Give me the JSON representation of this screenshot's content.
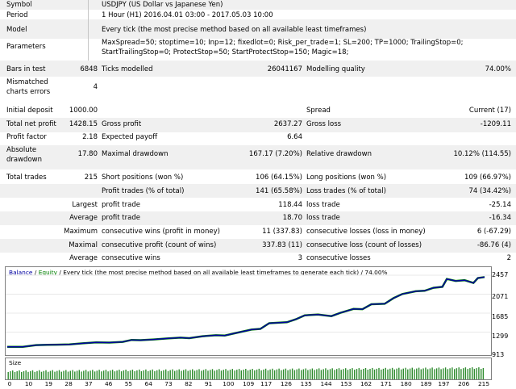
{
  "header": {
    "symbol": {
      "label": "Symbol",
      "value": "USDJPY (US Dollar vs Japanese Yen)"
    },
    "period": {
      "label": "Period",
      "value": "1 Hour (H1) 2016.04.01 03:00 - 2017.05.03 10:00"
    },
    "model": {
      "label": "Model",
      "value": "Every tick (the most precise method based on all available least timeframes)"
    },
    "parameters": {
      "label": "Parameters",
      "line1": "MaxSpread=50; stoptime=10; Inp=12; fixedlot=0; Risk_per_trade=1; SL=200; TP=1000; TrailingStop=0;",
      "line2": "StartTrailingStop=0; ProtectStop=50; StartProtectStop=150; Magic=18;"
    }
  },
  "bars": {
    "label": "Bars in test",
    "value": "6848"
  },
  "ticks": {
    "label": "Ticks modelled",
    "value": "26041167"
  },
  "quality": {
    "label": "Modelling quality",
    "value": "74.00%"
  },
  "mismatched": {
    "label1": "Mismatched",
    "label2": "charts errors",
    "value": "4"
  },
  "deposit": {
    "label": "Initial deposit",
    "value": "1000.00"
  },
  "spread": {
    "label": "Spread",
    "value": "Current (17)"
  },
  "net_profit": {
    "label": "Total net profit",
    "value": "1428.15"
  },
  "gross_profit": {
    "label": "Gross profit",
    "value": "2637.27"
  },
  "gross_loss": {
    "label": "Gross loss",
    "value": "-1209.11"
  },
  "profit_factor": {
    "label": "Profit factor",
    "value": "2.18"
  },
  "expected_payoff": {
    "label": "Expected payoff",
    "value": "6.64"
  },
  "abs_drawdown": {
    "label1": "Absolute",
    "label2": "drawdown",
    "value": "17.80"
  },
  "max_drawdown": {
    "label": "Maximal drawdown",
    "value": "167.17 (7.20%)"
  },
  "rel_drawdown": {
    "label": "Relative drawdown",
    "value": "10.12% (114.55)"
  },
  "total_trades": {
    "label": "Total trades",
    "value": "215"
  },
  "short_positions": {
    "label": "Short positions (won %)",
    "value": "106 (64.15%)"
  },
  "long_positions": {
    "label": "Long positions (won %)",
    "value": "109 (66.97%)"
  },
  "profit_trades": {
    "label": "Profit trades (% of total)",
    "value": "141 (65.58%)"
  },
  "loss_trades": {
    "label": "Loss trades (% of total)",
    "value": "74 (34.42%)"
  },
  "largest": {
    "label": "Largest",
    "profit_label": "profit trade",
    "profit_value": "118.44",
    "loss_label": "loss trade",
    "loss_value": "-25.14"
  },
  "average": {
    "label": "Average",
    "profit_label": "profit trade",
    "profit_value": "18.70",
    "loss_label": "loss trade",
    "loss_value": "-16.34"
  },
  "maximum": {
    "label": "Maximum",
    "wins_label": "consecutive wins (profit in money)",
    "wins_value": "11 (337.83)",
    "losses_label": "consecutive losses (loss in money)",
    "losses_value": "6 (-67.29)"
  },
  "maximal": {
    "label": "Maximal",
    "wins_label": "consecutive profit (count of wins)",
    "wins_value": "337.83 (11)",
    "losses_label": "consecutive loss (count of losses)",
    "losses_value": "-86.76 (4)"
  },
  "avg_consec": {
    "label": "Average",
    "wins_label": "consecutive wins",
    "wins_value": "3",
    "losses_label": "consecutive losses",
    "losses_value": "2"
  },
  "chart_title": {
    "balance": "Balance",
    "sep": " / ",
    "equity": "Equity",
    "rest": " / Every tick (the most precise method based on all available least timeframes to generate each tick) / 74.00%"
  },
  "colors": {
    "balance": "#0000a0",
    "equity": "#008000",
    "volume": "#2e8b2e"
  },
  "chart_data": {
    "type": "line",
    "ylabels": [
      "2457",
      "2071",
      "1685",
      "1299",
      "913"
    ],
    "xlabels": [
      "0",
      "10",
      "19",
      "28",
      "37",
      "46",
      "55",
      "64",
      "73",
      "82",
      "91",
      "100",
      "109",
      "117",
      "126",
      "135",
      "144",
      "153",
      "162",
      "171",
      "180",
      "189",
      "197",
      "206",
      "215"
    ],
    "size_label": "Size",
    "series": [
      {
        "name": "Balance",
        "x": [
          0,
          7,
          13,
          18,
          22,
          28,
          34,
          40,
          46,
          52,
          56,
          60,
          66,
          72,
          78,
          82,
          88,
          94,
          98,
          104,
          110,
          114,
          118,
          122,
          126,
          130,
          134,
          140,
          146,
          150,
          156,
          160,
          164,
          170,
          174,
          178,
          184,
          188,
          192,
          196,
          198,
          202,
          206,
          210,
          212,
          215
        ],
        "y": [
          1000,
          1000,
          1035,
          1040,
          1042,
          1050,
          1070,
          1090,
          1085,
          1100,
          1140,
          1135,
          1150,
          1170,
          1185,
          1175,
          1215,
          1235,
          1230,
          1290,
          1350,
          1365,
          1480,
          1490,
          1500,
          1560,
          1640,
          1655,
          1625,
          1690,
          1770,
          1765,
          1865,
          1875,
          1990,
          2075,
          2130,
          2140,
          2200,
          2220,
          2380,
          2340,
          2355,
          2300,
          2400,
          2420
        ]
      }
    ],
    "volume": "each trade 0.01-0.05 lot, rising over the test"
  }
}
